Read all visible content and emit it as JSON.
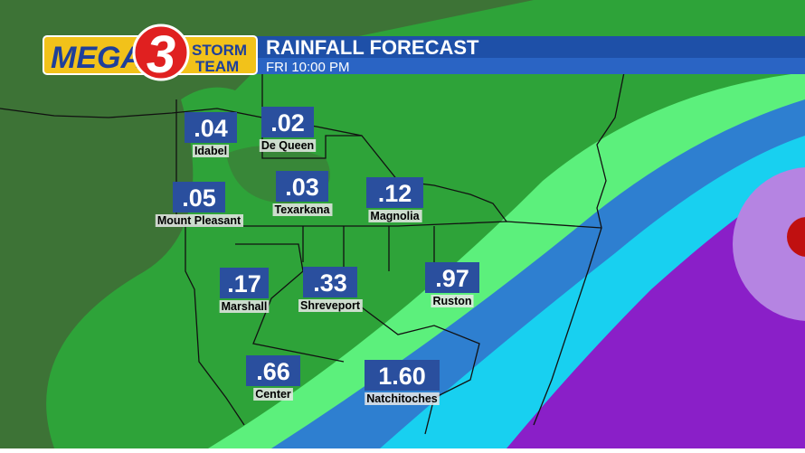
{
  "header": {
    "logo": {
      "mega": "MEGA",
      "number": "3",
      "storm": "STORM",
      "team": "TEAM"
    },
    "title": "RAINFALL FORECAST",
    "subtitle": "FRI 10:00 PM"
  },
  "cities": [
    {
      "label": "Idabel",
      "value": ".04"
    },
    {
      "label": "De Queen",
      "value": ".02"
    },
    {
      "label": "Mount Pleasant",
      "value": ".05"
    },
    {
      "label": "Texarkana",
      "value": ".03"
    },
    {
      "label": "Magnolia",
      "value": ".12"
    },
    {
      "label": "Marshall",
      "value": ".17"
    },
    {
      "label": "Shreveport",
      "value": ".33"
    },
    {
      "label": "Ruston",
      "value": ".97"
    },
    {
      "label": "Center",
      "value": ".66"
    },
    {
      "label": "Natchitoches",
      "value": "1.60"
    }
  ]
}
